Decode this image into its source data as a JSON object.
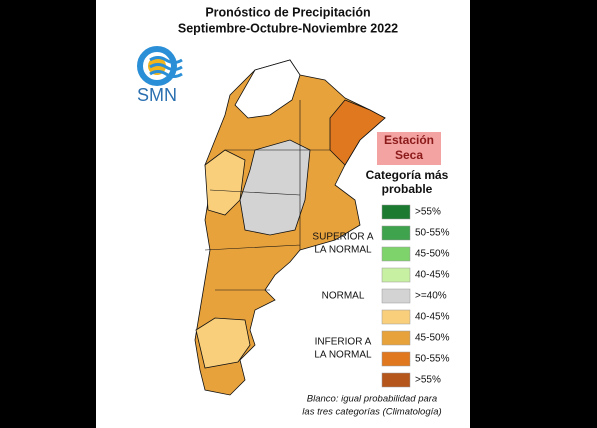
{
  "header": {
    "title_lines": [
      "Pronóstico de Precipitación",
      "Septiembre-Octubre-Noviembre 2022"
    ]
  },
  "logo": {
    "text": "SMN"
  },
  "badge": {
    "lines": [
      "Estación",
      "Seca"
    ]
  },
  "legend": {
    "title_lines": [
      "Categoría más",
      "probable"
    ],
    "groups": [
      {
        "label_lines": [
          "SUPERIOR A",
          "LA NORMAL"
        ],
        "items": [
          {
            "label": ">55%",
            "color": "#1b7a2f"
          },
          {
            "label": "50-55%",
            "color": "#3fa34d"
          },
          {
            "label": "45-50%",
            "color": "#7fd36b"
          },
          {
            "label": "40-45%",
            "color": "#c8f0a2"
          }
        ]
      },
      {
        "label_lines": [
          "NORMAL"
        ],
        "items": [
          {
            "label": ">=40%",
            "color": "#d3d3d3"
          }
        ]
      },
      {
        "label_lines": [
          "INFERIOR A",
          "LA NORMAL"
        ],
        "items": [
          {
            "label": "40-45%",
            "color": "#f9cf7c"
          },
          {
            "label": "45-50%",
            "color": "#e8a23c"
          },
          {
            "label": "50-55%",
            "color": "#e0781f"
          },
          {
            "label": ">55%",
            "color": "#b5561c"
          }
        ]
      }
    ]
  },
  "footnote": {
    "lines": [
      "Blanco: igual probabilidad para",
      "las tres categorías (Climatología)"
    ]
  }
}
